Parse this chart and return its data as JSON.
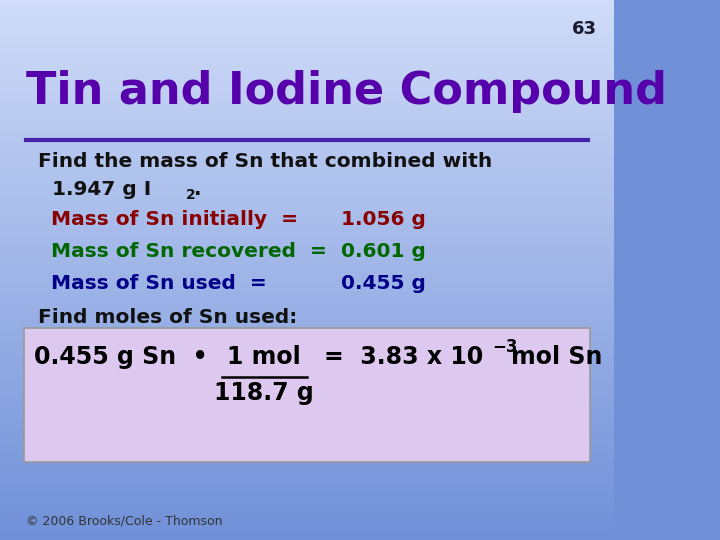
{
  "slide_number": "63",
  "title": "Tin and Iodine Compound",
  "title_color": "#5500aa",
  "bg_color_top": "#7090d8",
  "bg_color_bottom": "#d0dcf8",
  "slide_bg": "#8aaade",
  "line1": "Find the mass of Sn that combined with",
  "line2_main": "  1.947 g I",
  "line2_sub": "2",
  "line2_end": ".",
  "mass_initially_label": "Mass of Sn initially  =",
  "mass_initially_value": "1.056 g",
  "mass_initially_color": "#880000",
  "mass_recovered_label": "Mass of Sn recovered  =",
  "mass_recovered_value": "0.601 g",
  "mass_recovered_color": "#006600",
  "mass_used_label": "Mass of Sn used  =",
  "mass_used_value": "0.455 g",
  "mass_used_color": "#000088",
  "find_moles": "Find moles of Sn used:",
  "text_color": "#111111",
  "formula_bg": "#ddc8f0",
  "footer": "© 2006 Brooks/Cole - Thomson",
  "hr_color": "#4422aa",
  "slide_number_color": "#1a1a2e"
}
